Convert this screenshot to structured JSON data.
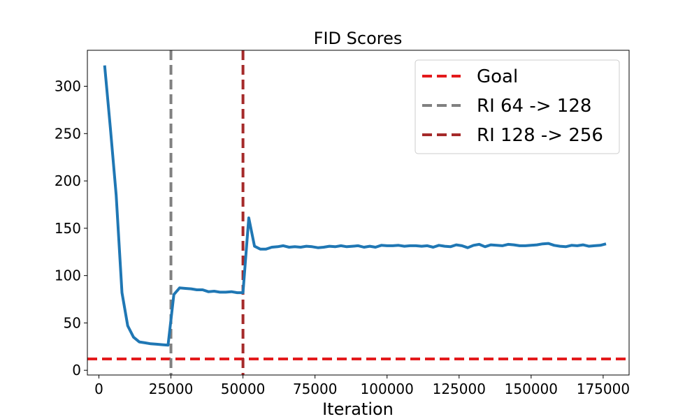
{
  "chart_data": {
    "type": "line",
    "title": "FID Scores",
    "xlabel": "Iteration",
    "ylabel": "",
    "xlim": [
      -4000,
      184000
    ],
    "ylim": [
      -5,
      338
    ],
    "xticks": [
      0,
      25000,
      50000,
      75000,
      100000,
      125000,
      150000,
      175000
    ],
    "xtick_labels": [
      "0",
      "25000",
      "50000",
      "75000",
      "100000",
      "125000",
      "150000",
      "175000"
    ],
    "yticks": [
      0,
      50,
      100,
      150,
      200,
      250,
      300
    ],
    "ytick_labels": [
      "0",
      "50",
      "100",
      "150",
      "200",
      "250",
      "300"
    ],
    "grid": false,
    "legend_position": "top-right",
    "series": [
      {
        "name": "",
        "color": "#1f77b4",
        "style": "solid",
        "x": [
          2000,
          4000,
          6000,
          8000,
          10000,
          12000,
          14000,
          16000,
          18000,
          20000,
          22000,
          24000,
          26000,
          28000,
          30000,
          32000,
          34000,
          36000,
          38000,
          40000,
          42000,
          44000,
          46000,
          48000,
          50000,
          52000,
          54000,
          56000,
          58000,
          60000,
          62000,
          64000,
          66000,
          68000,
          70000,
          72000,
          74000,
          76000,
          78000,
          80000,
          82000,
          84000,
          86000,
          88000,
          90000,
          92000,
          94000,
          96000,
          98000,
          100000,
          102000,
          104000,
          106000,
          108000,
          110000,
          112000,
          114000,
          116000,
          118000,
          120000,
          122000,
          124000,
          126000,
          128000,
          130000,
          132000,
          134000,
          136000,
          138000,
          140000,
          142000,
          144000,
          146000,
          148000,
          150000,
          152000,
          154000,
          156000,
          158000,
          160000,
          162000,
          164000,
          166000,
          168000,
          170000,
          172000,
          174000,
          176000
        ],
        "y": [
          322,
          255,
          185,
          82,
          47,
          35,
          30,
          29,
          28,
          27.5,
          27,
          26.5,
          80,
          87,
          86.5,
          86,
          85,
          85,
          83,
          83.5,
          82.5,
          82.5,
          83,
          82,
          82,
          161,
          131,
          128,
          128,
          130,
          130.5,
          131.5,
          130,
          130.5,
          130,
          131,
          130.5,
          129.5,
          130,
          131,
          130.5,
          131.5,
          130.5,
          131,
          131.5,
          130,
          131,
          130,
          132,
          131.5,
          131.5,
          132,
          131,
          131.5,
          131.5,
          131,
          131.5,
          130,
          132,
          131,
          130.5,
          132.5,
          131.5,
          129.5,
          132,
          133,
          130.5,
          132.5,
          132,
          131.5,
          133,
          132.5,
          131.5,
          131.5,
          132,
          132.5,
          133.5,
          134,
          132,
          131,
          130.5,
          132,
          131.5,
          132.5,
          131,
          131.5,
          132,
          133.5
        ]
      }
    ],
    "reference_lines": [
      {
        "name": "Goal",
        "orientation": "horizontal",
        "value": 12,
        "color": "#e31a1c",
        "style": "dashed"
      },
      {
        "name": "RI 64 -> 128",
        "orientation": "vertical",
        "value": 25000,
        "color": "#808080",
        "style": "dashed"
      },
      {
        "name": "RI 128 -> 256",
        "orientation": "vertical",
        "value": 50000,
        "color": "#a52a2a",
        "style": "dashed"
      }
    ],
    "legend": [
      "Goal",
      "RI 64 -> 128",
      "RI 128 -> 256"
    ]
  }
}
